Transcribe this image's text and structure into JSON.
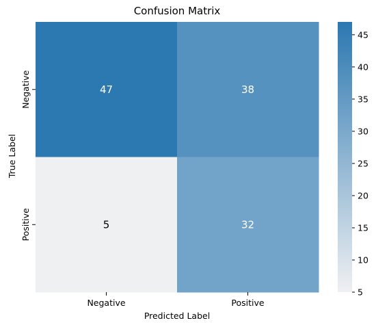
{
  "chart_data": {
    "type": "heatmap",
    "title": "Confusion Matrix",
    "xlabel": "Predicted Label",
    "ylabel": "True Label",
    "x_categories": [
      "Negative",
      "Positive"
    ],
    "y_categories": [
      "Negative",
      "Positive"
    ],
    "values": [
      [
        47,
        38
      ],
      [
        5,
        32
      ]
    ],
    "colorbar": {
      "min": 5,
      "max": 47,
      "ticks": [
        5,
        10,
        15,
        20,
        25,
        30,
        35,
        40,
        45
      ],
      "color_low": "#eff0f2",
      "color_high": "#2c78b1"
    },
    "annotation_colors": {
      "light": "#ffffff",
      "dark": "#000000"
    }
  }
}
